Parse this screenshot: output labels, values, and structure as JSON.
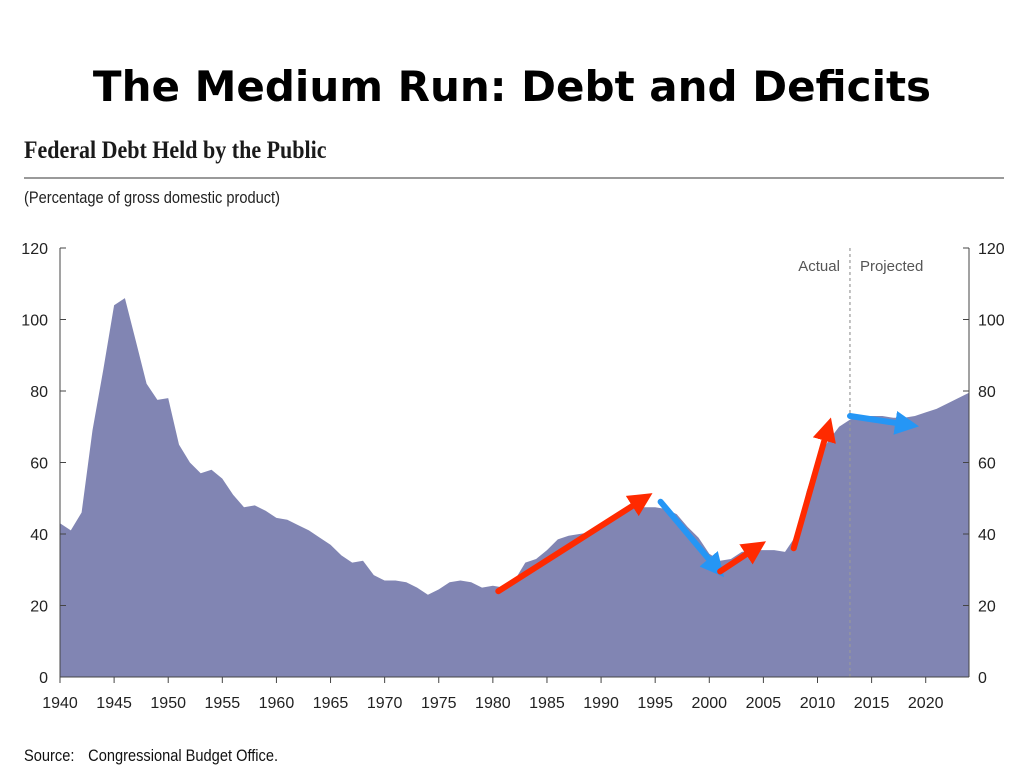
{
  "slide": {
    "title": "The Medium Run: Debt and Deficits"
  },
  "chart_data": {
    "type": "area",
    "title": "Federal Debt Held by the Public",
    "subtitle": "(Percentage of gross domestic product)",
    "xlabel": "",
    "ylabel": "",
    "xlim": [
      1940,
      2024
    ],
    "ylim": [
      0,
      120
    ],
    "yticks": [
      0,
      20,
      40,
      60,
      80,
      100,
      120
    ],
    "xticks": [
      1940,
      1945,
      1950,
      1955,
      1960,
      1965,
      1970,
      1975,
      1980,
      1985,
      1990,
      1995,
      2000,
      2005,
      2010,
      2015,
      2020
    ],
    "grid": false,
    "legend": "none",
    "x": [
      1940,
      1941,
      1942,
      1943,
      1944,
      1945,
      1946,
      1947,
      1948,
      1949,
      1950,
      1951,
      1952,
      1953,
      1954,
      1955,
      1956,
      1957,
      1958,
      1959,
      1960,
      1961,
      1962,
      1963,
      1964,
      1965,
      1966,
      1967,
      1968,
      1969,
      1970,
      1971,
      1972,
      1973,
      1974,
      1975,
      1976,
      1977,
      1978,
      1979,
      1980,
      1981,
      1982,
      1983,
      1984,
      1985,
      1986,
      1987,
      1988,
      1989,
      1990,
      1991,
      1992,
      1993,
      1994,
      1995,
      1996,
      1997,
      1998,
      1999,
      2000,
      2001,
      2002,
      2003,
      2004,
      2005,
      2006,
      2007,
      2008,
      2009,
      2010,
      2011,
      2012,
      2013,
      2014,
      2015,
      2016,
      2017,
      2018,
      2019,
      2020,
      2021,
      2022,
      2023,
      2024
    ],
    "values": [
      43,
      41,
      46,
      69,
      86,
      104,
      106,
      94,
      82,
      77.5,
      78,
      65,
      60,
      57,
      58,
      55.5,
      51,
      47.5,
      48,
      46.5,
      44.5,
      44,
      42.5,
      41,
      39,
      37,
      34,
      32,
      32.5,
      28.5,
      27,
      27,
      26.5,
      25,
      23,
      24.5,
      26.5,
      27,
      26.5,
      25,
      25.5,
      25,
      27,
      32,
      33,
      35.5,
      38.5,
      39.5,
      40,
      40.5,
      42,
      44.5,
      46.5,
      47.5,
      47.5,
      47.5,
      47,
      45.5,
      42,
      39,
      34.5,
      32.5,
      33,
      35,
      35.5,
      35.5,
      35.5,
      35,
      39.5,
      52,
      61,
      66,
      70,
      72,
      73,
      73,
      73,
      72.5,
      72.5,
      73,
      74,
      75,
      76.5,
      78,
      79.5
    ],
    "series_color": "#8185b3",
    "divider": {
      "x": 2013,
      "label_left": "Actual",
      "label_right": "Projected"
    },
    "annotations": [
      {
        "kind": "arrow",
        "color": "#ff2a00",
        "from": [
          1980.5,
          24
        ],
        "to": [
          1994,
          50
        ]
      },
      {
        "kind": "arrow",
        "color": "#2596f5",
        "from": [
          1995.5,
          49
        ],
        "to": [
          2000.8,
          30
        ]
      },
      {
        "kind": "arrow",
        "color": "#ff2a00",
        "from": [
          2001,
          29.5
        ],
        "to": [
          2004.5,
          36.5
        ]
      },
      {
        "kind": "arrow",
        "color": "#ff2a00",
        "from": [
          2007.8,
          36
        ],
        "to": [
          2011,
          70
        ]
      },
      {
        "kind": "arrow",
        "color": "#2596f5",
        "from": [
          2013,
          73
        ],
        "to": [
          2018.5,
          70.5
        ]
      }
    ]
  },
  "source": {
    "label": "Source:",
    "text": "Congressional Budget Office."
  }
}
